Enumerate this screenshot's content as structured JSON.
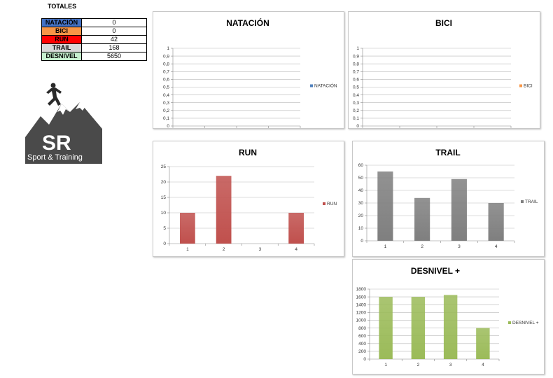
{
  "totals": {
    "title": "TOTALES",
    "rows": [
      {
        "label": "NATACIÓN",
        "value": "0",
        "color": "#4472c4"
      },
      {
        "label": "BICI",
        "value": "0",
        "color": "#f79646"
      },
      {
        "label": "RUN",
        "value": "42",
        "color": "#ff0000"
      },
      {
        "label": "TRAIL",
        "value": "168",
        "color": "#d9d9d9"
      },
      {
        "label": "DESNIVEL",
        "value": "5650",
        "color": "#c6efce"
      }
    ]
  },
  "logo": {
    "initials": "SR",
    "tagline": "Sport & Training"
  },
  "chart_data": [
    {
      "id": "natacion",
      "type": "bar",
      "title": "NATACIÓN",
      "categories": [
        "1",
        "2",
        "3",
        "4"
      ],
      "series": [
        {
          "name": "NATACIÓN",
          "values": [
            0,
            0,
            0,
            0
          ],
          "color": "#4f81bd"
        }
      ],
      "ylim": [
        0,
        1
      ],
      "yticks": [
        "0",
        "0,1",
        "0,2",
        "0,3",
        "0,4",
        "0,5",
        "0,6",
        "0,7",
        "0,8",
        "0,9",
        "1"
      ],
      "grid": true,
      "legend": "right"
    },
    {
      "id": "bici",
      "type": "bar",
      "title": "BICI",
      "categories": [
        "1",
        "2",
        "3",
        "4"
      ],
      "series": [
        {
          "name": "BICI",
          "values": [
            0,
            0,
            0,
            0
          ],
          "color": "#f79646"
        }
      ],
      "ylim": [
        0,
        1
      ],
      "yticks": [
        "0",
        "0,1",
        "0,2",
        "0,3",
        "0,4",
        "0,5",
        "0,6",
        "0,7",
        "0,8",
        "0,9",
        "1"
      ],
      "grid": true,
      "legend": "right"
    },
    {
      "id": "run",
      "type": "bar",
      "title": "RUN",
      "categories": [
        "1",
        "2",
        "3",
        "4"
      ],
      "series": [
        {
          "name": "RUN",
          "values": [
            10,
            22,
            0,
            10
          ],
          "color": "#c0504d"
        }
      ],
      "ylim": [
        0,
        25
      ],
      "yticks": [
        "0",
        "5",
        "10",
        "15",
        "20",
        "25"
      ],
      "grid": true,
      "legend": "right"
    },
    {
      "id": "trail",
      "type": "bar",
      "title": "TRAIL",
      "categories": [
        "1",
        "2",
        "3",
        "4"
      ],
      "series": [
        {
          "name": "TRAIL",
          "values": [
            55,
            34,
            49,
            30
          ],
          "color": "#7f7f7f"
        }
      ],
      "ylim": [
        0,
        60
      ],
      "yticks": [
        "0",
        "10",
        "20",
        "30",
        "40",
        "50",
        "60"
      ],
      "grid": true,
      "legend": "right"
    },
    {
      "id": "desnivel",
      "type": "bar",
      "title": "DESNIVEL +",
      "categories": [
        "1",
        "2",
        "3",
        "4"
      ],
      "series": [
        {
          "name": "DESNIVEL +",
          "values": [
            1600,
            1600,
            1650,
            800
          ],
          "color": "#9bbb59"
        }
      ],
      "ylim": [
        0,
        1800
      ],
      "yticks": [
        "0",
        "200",
        "400",
        "600",
        "800",
        "1000",
        "1200",
        "1400",
        "1600",
        "1800"
      ],
      "grid": true,
      "legend": "right"
    }
  ]
}
